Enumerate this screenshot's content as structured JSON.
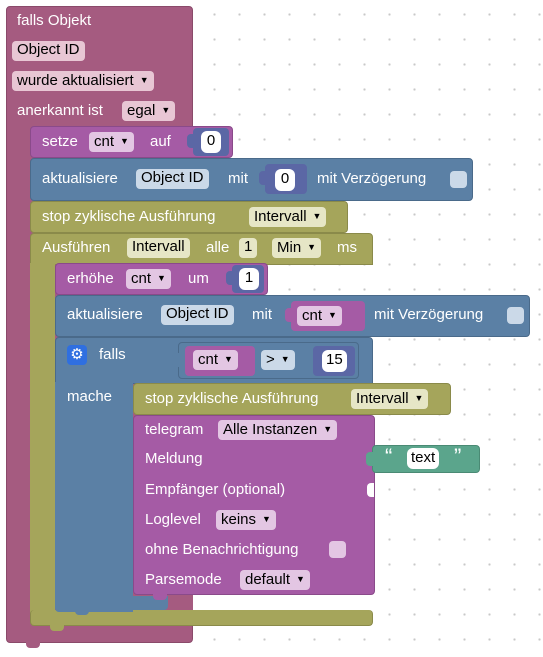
{
  "trigger": {
    "title": "falls Objekt",
    "object": "Object ID",
    "event": "wurde aktualisiert",
    "ack_label": "anerkannt ist",
    "ack_value": "egal"
  },
  "set_var": {
    "label": "setze",
    "var": "cnt",
    "to": "auf",
    "value": "0"
  },
  "update1": {
    "label": "aktualisiere",
    "object": "Object ID",
    "with": "mit",
    "value": "0",
    "delay": "mit Verzögerung"
  },
  "stop1": {
    "label": "stop zyklische Ausführung",
    "interval": "Intervall"
  },
  "run": {
    "label": "Ausführen",
    "interval": "Intervall",
    "every": "alle",
    "value": "1",
    "unit": "Min",
    "ms": "ms"
  },
  "inc": {
    "label": "erhöhe",
    "var": "cnt",
    "by": "um",
    "value": "1"
  },
  "update2": {
    "label": "aktualisiere",
    "object": "Object ID",
    "with": "mit",
    "var": "cnt",
    "delay": "mit Verzögerung"
  },
  "if_block": {
    "if": "falls",
    "do": "mache",
    "var": "cnt",
    "op": ">",
    "value": "15"
  },
  "stop2": {
    "label": "stop zyklische Ausführung",
    "interval": "Intervall"
  },
  "telegram": {
    "label": "telegram",
    "instance": "Alle Instanzen",
    "message_label": "Meldung",
    "message": "text",
    "recipient": "Empfänger (optional)",
    "loglevel_label": "Loglevel",
    "loglevel": "keins",
    "silent": "ohne Benachrichtigung",
    "parsemode_label": "Parsemode",
    "parsemode": "default"
  },
  "colors": {
    "trigger": "#a55b80",
    "variable": "#a55ba5",
    "update": "#5b80a5",
    "timer": "#a5a55b",
    "logic": "#5b80a5",
    "math": "#5b67a5",
    "text": "#5ba58c",
    "telegram": "#a55ba5",
    "cog": "#2f6fe0"
  },
  "icons": {
    "quote_open": "left-double-quote-icon",
    "quote_close": "right-double-quote-icon",
    "gear": "gear-icon"
  }
}
